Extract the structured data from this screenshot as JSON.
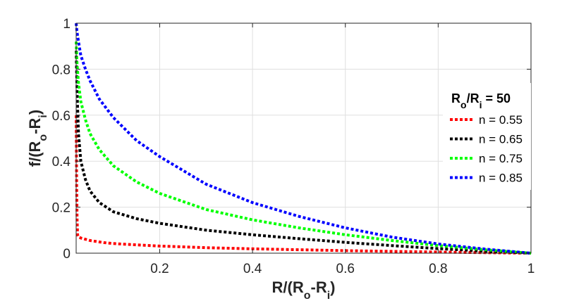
{
  "chart_data": {
    "type": "line",
    "xlabel": "R/(Ro-Ri)",
    "xlabel_parts": [
      "R/(R",
      "o",
      "-R",
      "i",
      ")"
    ],
    "ylabel": "f/(Ro-Ri)",
    "ylabel_parts": [
      "f/(R",
      "o",
      "-R",
      "i",
      ")"
    ],
    "xlim": [
      0.02,
      1.0
    ],
    "ylim": [
      0,
      1
    ],
    "xticks": [
      0.2,
      0.4,
      0.6,
      0.8,
      1
    ],
    "xtick_labels": [
      "0.2",
      "0.4",
      "0.6",
      "0.8",
      "1"
    ],
    "yticks": [
      0,
      0.2,
      0.4,
      0.6,
      0.8,
      1
    ],
    "ytick_labels": [
      "0",
      "0.2",
      "0.4",
      "0.6",
      "0.8",
      "1"
    ],
    "grid": true,
    "legend": {
      "position": "right",
      "title": "Ro/Ri = 50",
      "title_parts": [
        "R",
        "o",
        "/R",
        "i",
        " = 50"
      ]
    },
    "series": [
      {
        "name": "n = 0.55",
        "color": "#ff0000",
        "x": [
          0.02,
          0.021,
          0.022,
          0.023,
          0.025,
          0.03,
          0.05,
          0.08,
          0.1,
          0.15,
          0.2,
          0.3,
          0.4,
          0.5,
          0.6,
          0.7,
          0.8,
          0.9,
          1.0
        ],
        "y": [
          0.6,
          0.3,
          0.15,
          0.08,
          0.07,
          0.066,
          0.055,
          0.046,
          0.042,
          0.036,
          0.031,
          0.024,
          0.019,
          0.015,
          0.011,
          0.008,
          0.005,
          0.002,
          0.0
        ]
      },
      {
        "name": "n = 0.65",
        "color": "#000000",
        "x": [
          0.02,
          0.022,
          0.025,
          0.03,
          0.04,
          0.05,
          0.07,
          0.1,
          0.15,
          0.2,
          0.3,
          0.4,
          0.5,
          0.6,
          0.7,
          0.8,
          0.9,
          1.0
        ],
        "y": [
          0.88,
          0.7,
          0.52,
          0.4,
          0.32,
          0.27,
          0.22,
          0.18,
          0.15,
          0.13,
          0.1,
          0.08,
          0.063,
          0.047,
          0.033,
          0.02,
          0.009,
          0.0
        ]
      },
      {
        "name": "n = 0.75",
        "color": "#00ff00",
        "x": [
          0.02,
          0.022,
          0.025,
          0.03,
          0.04,
          0.05,
          0.07,
          0.1,
          0.15,
          0.2,
          0.3,
          0.4,
          0.5,
          0.6,
          0.7,
          0.8,
          0.9,
          1.0
        ],
        "y": [
          0.92,
          0.82,
          0.74,
          0.66,
          0.58,
          0.52,
          0.45,
          0.38,
          0.31,
          0.26,
          0.19,
          0.145,
          0.11,
          0.08,
          0.055,
          0.033,
          0.015,
          0.0
        ]
      },
      {
        "name": "n = 0.85",
        "color": "#0000ff",
        "x": [
          0.02,
          0.022,
          0.025,
          0.03,
          0.04,
          0.05,
          0.07,
          0.1,
          0.15,
          0.2,
          0.3,
          0.4,
          0.5,
          0.6,
          0.7,
          0.8,
          0.9,
          1.0
        ],
        "y": [
          1.0,
          0.96,
          0.92,
          0.86,
          0.8,
          0.75,
          0.67,
          0.59,
          0.49,
          0.42,
          0.3,
          0.22,
          0.16,
          0.11,
          0.07,
          0.04,
          0.018,
          0.0
        ]
      }
    ]
  }
}
